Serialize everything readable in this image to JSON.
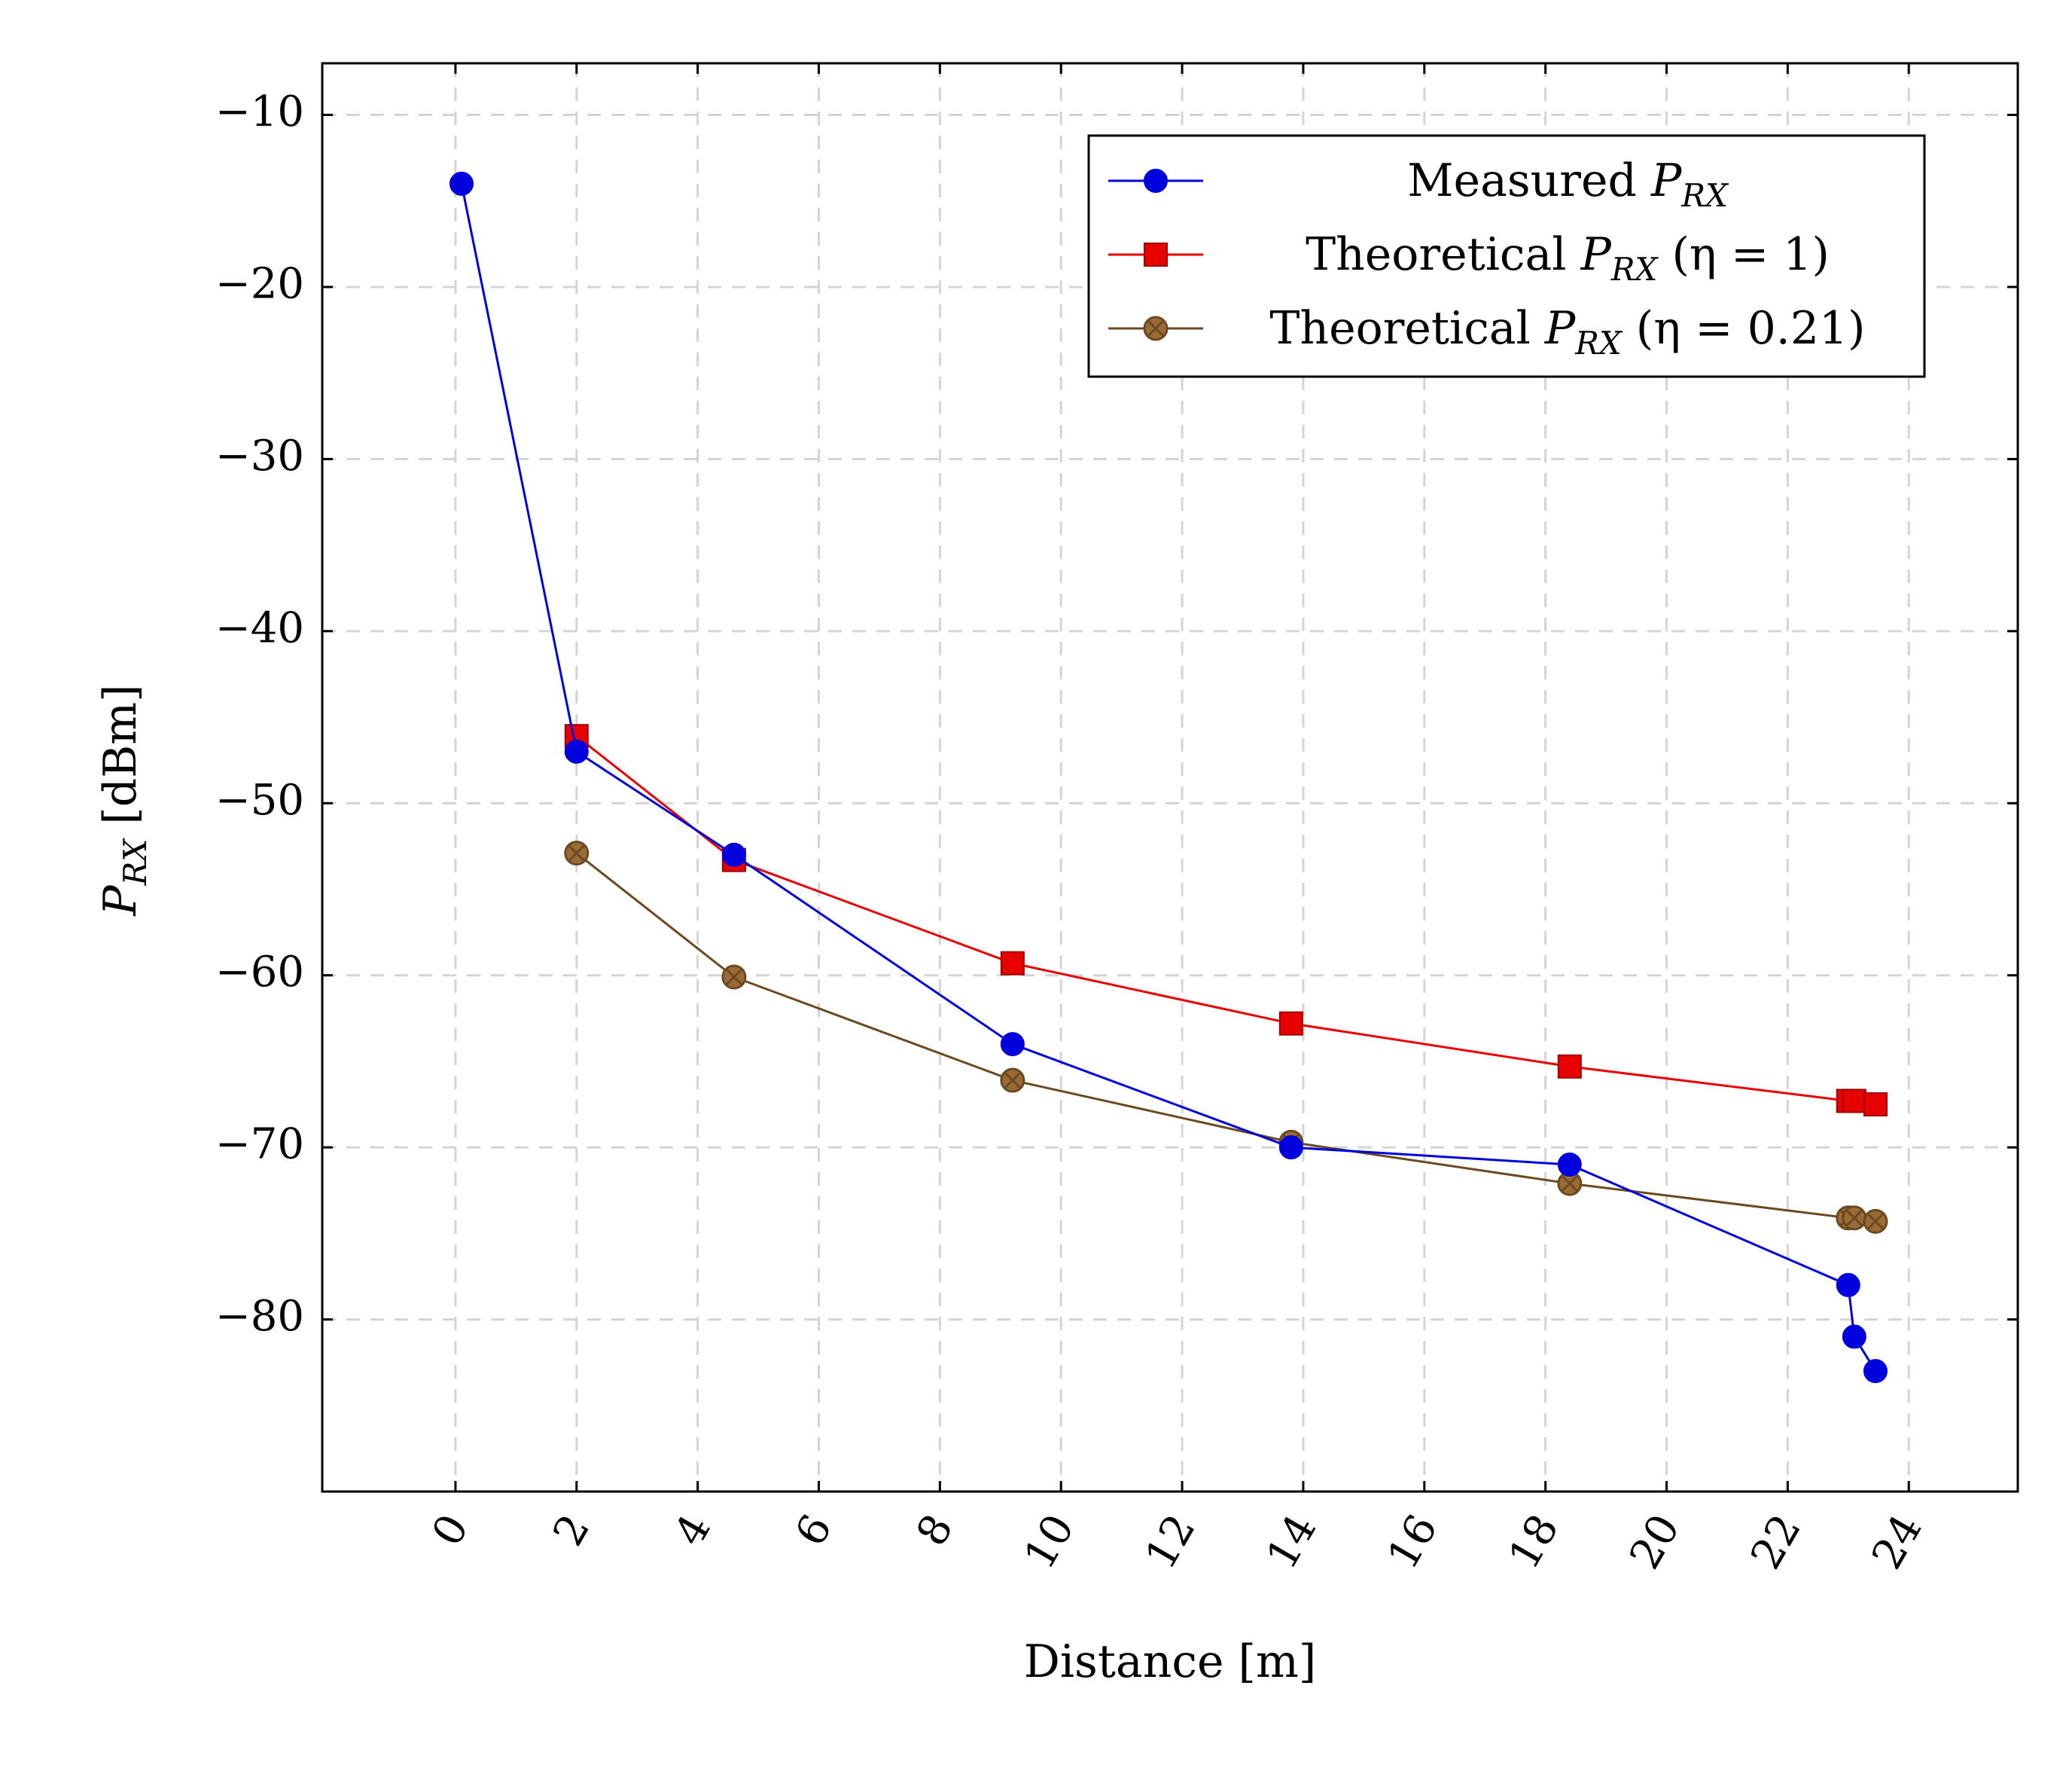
{
  "chart_data": {
    "type": "line",
    "xlabel": "Distance [m]",
    "ylabel": "P_RX [dBm]",
    "ylabel_parts": {
      "main": "P",
      "sub": "RX",
      "unit": " [dBm]"
    },
    "xlim": [
      -2.2,
      25.8
    ],
    "ylim": [
      -90,
      -7
    ],
    "x_ticks": [
      0,
      2,
      4,
      6,
      8,
      10,
      12,
      14,
      16,
      18,
      20,
      22,
      24
    ],
    "y_ticks": [
      -80,
      -70,
      -60,
      -50,
      -40,
      -30,
      -20,
      -10
    ],
    "x_tick_labels": [
      "0",
      "2",
      "4",
      "6",
      "8",
      "10",
      "12",
      "14",
      "16",
      "18",
      "20",
      "22",
      "24"
    ],
    "y_tick_labels": [
      "−80",
      "−70",
      "−60",
      "−50",
      "−40",
      "−30",
      "−20",
      "−10"
    ],
    "grid": true,
    "legend_position": "top-right",
    "series": [
      {
        "name": "Measured P_RX",
        "legend_parts": {
          "pre": "Measured ",
          "main": "P",
          "sub": "RX",
          "post": ""
        },
        "color": "#0000dd",
        "marker": "circle",
        "x": [
          0.1,
          2.0,
          4.6,
          9.2,
          13.8,
          18.4,
          23.0,
          23.1,
          23.45
        ],
        "y": [
          -14,
          -47,
          -53,
          -64,
          -70,
          -71,
          -78,
          -81,
          -83
        ]
      },
      {
        "name": "Theoretical P_RX (η = 1)",
        "legend_parts": {
          "pre": "Theoretical ",
          "main": "P",
          "sub": "RX",
          "post": " (η = 1)"
        },
        "color": "#e80000",
        "marker": "square",
        "x": [
          2.0,
          4.6,
          9.2,
          13.8,
          18.4,
          23.0,
          23.1,
          23.45
        ],
        "y": [
          -46.1,
          -53.3,
          -59.3,
          -62.8,
          -65.3,
          -67.3,
          -67.3,
          -67.5
        ]
      },
      {
        "name": "Theoretical P_RX (η = 0.21)",
        "legend_parts": {
          "pre": "Theoretical ",
          "main": "P",
          "sub": "RX",
          "post": " (η = 0.21)"
        },
        "color": "#6b4a22",
        "fill": "#9b6b35",
        "marker": "circle-x",
        "x": [
          2.0,
          4.6,
          9.2,
          13.8,
          18.4,
          23.0,
          23.1,
          23.45
        ],
        "y": [
          -52.9,
          -60.1,
          -66.1,
          -69.7,
          -72.1,
          -74.1,
          -74.1,
          -74.3
        ]
      }
    ]
  }
}
